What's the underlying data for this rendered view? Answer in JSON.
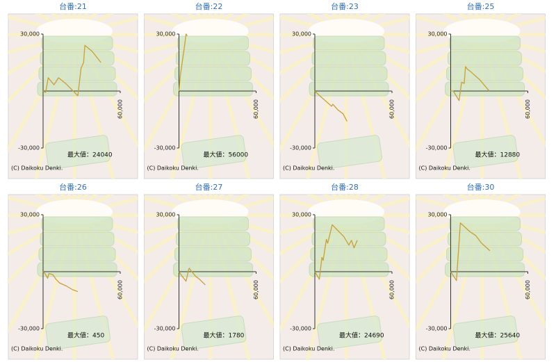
{
  "chart_data": [
    {
      "type": "line",
      "title": "台番:21",
      "x": [
        0,
        2000,
        4000,
        8500,
        12000,
        18000,
        27000,
        29500,
        31500,
        32500,
        38000,
        45000
      ],
      "values": [
        0,
        -700,
        7000,
        3300,
        7000,
        3700,
        -2500,
        12000,
        15000,
        24040,
        21000,
        15000
      ],
      "color": "#c9a033",
      "xlim": [
        0,
        60000
      ],
      "ylim": [
        -30000,
        30000
      ],
      "xticks": [
        {
          "value": 60000,
          "label": "60,000"
        }
      ],
      "yticks": [
        {
          "value": 30000,
          "label": "30,000"
        },
        {
          "value": -30000,
          "label": "-30,000"
        }
      ],
      "annotation": "最大値：24040",
      "credit": "(C) Daikoku Denki."
    },
    {
      "type": "line",
      "title": "台番:22",
      "x": [
        0,
        1000,
        2500,
        4000,
        5500,
        6500
      ],
      "values": [
        0,
        8000,
        15000,
        22000,
        30000,
        29000
      ],
      "color": "#c9a033",
      "xlim": [
        0,
        60000
      ],
      "ylim": [
        -30000,
        30000
      ],
      "xticks": [
        {
          "value": 60000,
          "label": "60,000"
        }
      ],
      "yticks": [
        {
          "value": 30000,
          "label": "30,000"
        },
        {
          "value": -30000,
          "label": "-30,000"
        }
      ],
      "annotation": "最大値：56000",
      "credit": "(C) Daikoku Denki."
    },
    {
      "type": "line",
      "title": "台番:23",
      "x": [
        0,
        3000,
        8000,
        13000,
        14000,
        18000,
        22000,
        25000
      ],
      "values": [
        0,
        -2000,
        -5000,
        -8000,
        -7000,
        -10000,
        -12000,
        -16000
      ],
      "color": "#c9a033",
      "xlim": [
        0,
        60000
      ],
      "ylim": [
        -30000,
        30000
      ],
      "xticks": [
        {
          "value": 60000,
          "label": "60,000"
        }
      ],
      "yticks": [
        {
          "value": 30000,
          "label": "30,000"
        },
        {
          "value": -30000,
          "label": "-30,000"
        }
      ],
      "credit": "(C) Daikoku Denki."
    },
    {
      "type": "line",
      "title": "台番:25",
      "x": [
        0,
        2000,
        6500,
        8500,
        10500,
        11500,
        13000,
        15000,
        22500,
        30000
      ],
      "values": [
        0,
        0,
        -5000,
        4700,
        4000,
        12880,
        11500,
        10500,
        6000,
        0
      ],
      "color": "#c9a033",
      "xlim": [
        0,
        60000
      ],
      "ylim": [
        -30000,
        30000
      ],
      "xticks": [
        {
          "value": 60000,
          "label": "60,000"
        }
      ],
      "yticks": [
        {
          "value": 30000,
          "label": "30,000"
        },
        {
          "value": -30000,
          "label": "-30,000"
        }
      ],
      "annotation": "最大値：12880",
      "credit": "(C) Daikoku Denki."
    },
    {
      "type": "line",
      "title": "台番:26",
      "x": [
        0,
        1500,
        3500,
        4500,
        7500,
        10000,
        13000,
        18000,
        23000,
        27000
      ],
      "values": [
        0,
        -1000,
        -3500,
        -1000,
        -1500,
        -4000,
        -6000,
        -7500,
        -9500,
        -10500
      ],
      "color": "#c9a033",
      "xlim": [
        0,
        60000
      ],
      "ylim": [
        -30000,
        30000
      ],
      "xticks": [
        {
          "value": 60000,
          "label": "60,000"
        }
      ],
      "yticks": [
        {
          "value": 30000,
          "label": "30,000"
        },
        {
          "value": -30000,
          "label": "-30,000"
        }
      ],
      "annotation": "最大値：450",
      "credit": "(C) Daikoku Denki."
    },
    {
      "type": "line",
      "title": "台番:27",
      "x": [
        0,
        2000,
        5500,
        7500,
        8000,
        10000,
        13000,
        16000,
        20500
      ],
      "values": [
        0,
        -2000,
        -5000,
        1000,
        1780,
        0,
        -2500,
        -4000,
        -7000
      ],
      "color": "#c9a033",
      "xlim": [
        0,
        60000
      ],
      "ylim": [
        -30000,
        30000
      ],
      "xticks": [
        {
          "value": 60000,
          "label": "60,000"
        }
      ],
      "yticks": [
        {
          "value": 30000,
          "label": "30,000"
        },
        {
          "value": -30000,
          "label": "-30,000"
        }
      ],
      "annotation": "最大値：1780",
      "credit": "(C) Daikoku Denki."
    },
    {
      "type": "line",
      "title": "台番:28",
      "x": [
        0,
        3500,
        5500,
        6500,
        9000,
        10000,
        13500,
        22500,
        26500,
        28500,
        30500,
        33000
      ],
      "values": [
        0,
        -4000,
        7500,
        6000,
        17000,
        15000,
        24690,
        18500,
        14000,
        16500,
        12500,
        16500
      ],
      "color": "#c9a033",
      "xlim": [
        0,
        60000
      ],
      "ylim": [
        -30000,
        30000
      ],
      "xticks": [
        {
          "value": 60000,
          "label": "60,000"
        }
      ],
      "yticks": [
        {
          "value": 30000,
          "label": "30,000"
        },
        {
          "value": -30000,
          "label": "-30,000"
        }
      ],
      "annotation": "最大値：24690",
      "credit": "(C) Daikoku Denki."
    },
    {
      "type": "line",
      "title": "台番:30",
      "x": [
        0,
        4500,
        7500,
        15000,
        19500,
        24000,
        30500
      ],
      "values": [
        0,
        -4700,
        25640,
        21000,
        19000,
        15000,
        11000
      ],
      "color": "#c9a033",
      "xlim": [
        0,
        60000
      ],
      "ylim": [
        -30000,
        30000
      ],
      "xticks": [
        {
          "value": 60000,
          "label": "60,000"
        }
      ],
      "yticks": [
        {
          "value": 30000,
          "label": "30,000"
        },
        {
          "value": -30000,
          "label": "-30,000"
        }
      ],
      "annotation": "最大値：25640",
      "credit": "(C) Daikoku Denki."
    }
  ]
}
